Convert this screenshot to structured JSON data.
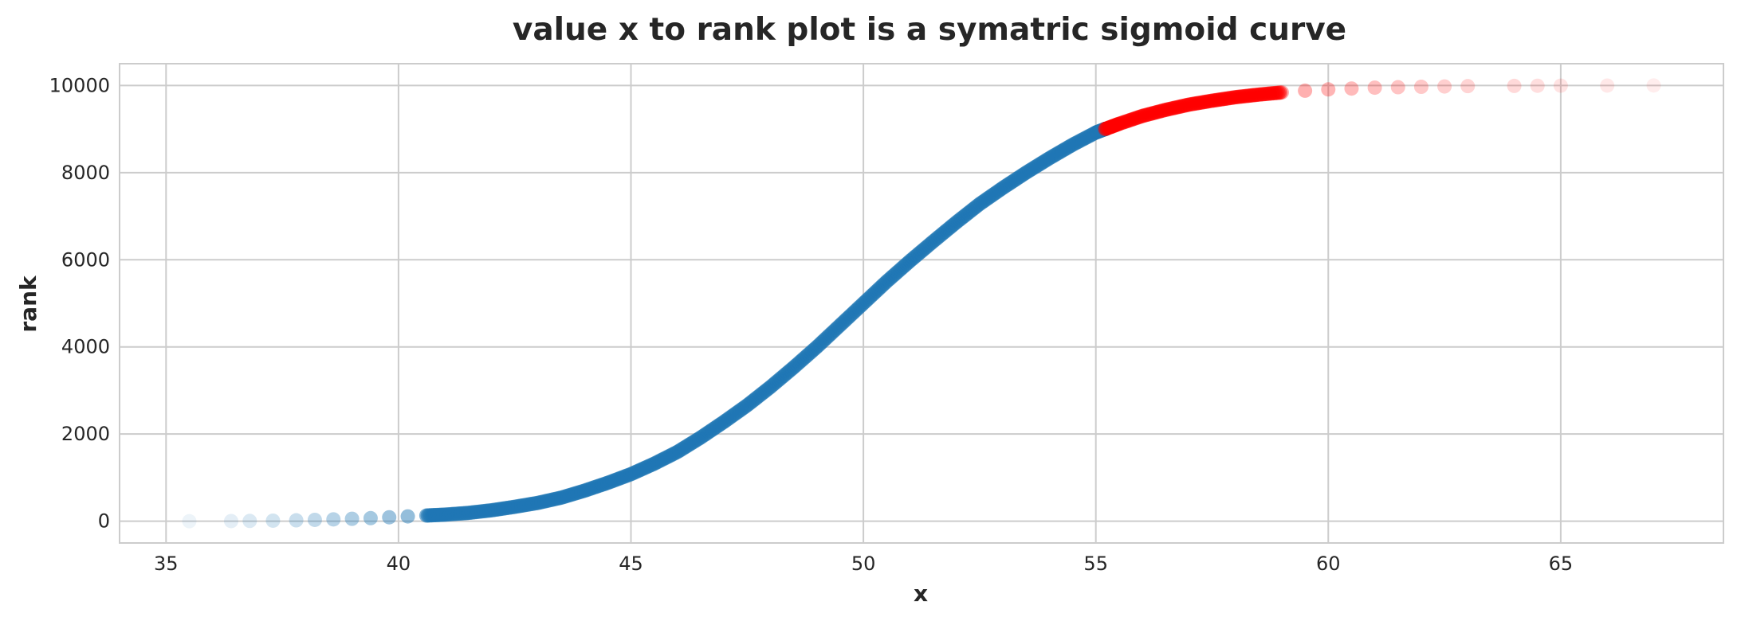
{
  "chart_data": {
    "type": "scatter",
    "title": "value x to rank plot is a symatric sigmoid curve",
    "xlabel": "x",
    "ylabel": "rank",
    "xlim": [
      34,
      68.5
    ],
    "ylim": [
      -500,
      10500
    ],
    "xticks": [
      35,
      40,
      45,
      50,
      55,
      60,
      65
    ],
    "yticks": [
      0,
      2000,
      4000,
      6000,
      8000,
      10000
    ],
    "grid": true,
    "series": [
      {
        "color": "#1f77b4",
        "x": [
          35.5,
          36.4,
          36.8,
          37.3,
          37.8,
          38.2,
          38.6,
          39.0,
          39.4,
          39.8,
          40.2,
          40.6,
          41.0,
          41.5,
          42.0,
          42.5,
          43.0,
          43.5,
          44.0,
          44.5,
          45.0,
          45.5,
          46.0,
          46.5,
          47.0,
          47.5,
          48.0,
          48.5,
          49.0,
          49.5,
          50.0,
          50.5,
          51.0,
          51.5,
          52.0,
          52.5,
          53.0,
          53.5,
          54.0,
          54.5,
          55.0,
          55.2
        ],
        "y": [
          0,
          3,
          6,
          12,
          20,
          30,
          42,
          55,
          70,
          90,
          110,
          130,
          150,
          190,
          250,
          330,
          420,
          540,
          700,
          880,
          1080,
          1320,
          1590,
          1920,
          2280,
          2660,
          3080,
          3530,
          4000,
          4500,
          5000,
          5500,
          5970,
          6420,
          6860,
          7280,
          7650,
          8000,
          8330,
          8640,
          8920,
          9000
        ]
      },
      {
        "color": "#ff0000",
        "x": [
          55.2,
          55.5,
          56.0,
          56.5,
          57.0,
          57.5,
          58.0,
          58.5,
          59.0,
          59.5,
          60.0,
          60.5,
          61.0,
          61.5,
          62.0,
          62.5,
          63.0,
          64.0,
          64.5,
          65.0,
          66.0,
          67.0
        ],
        "y": [
          9000,
          9120,
          9300,
          9440,
          9560,
          9650,
          9730,
          9790,
          9840,
          9880,
          9910,
          9930,
          9950,
          9960,
          9970,
          9978,
          9985,
          9990,
          9993,
          9996,
          9998,
          10000
        ]
      }
    ]
  }
}
